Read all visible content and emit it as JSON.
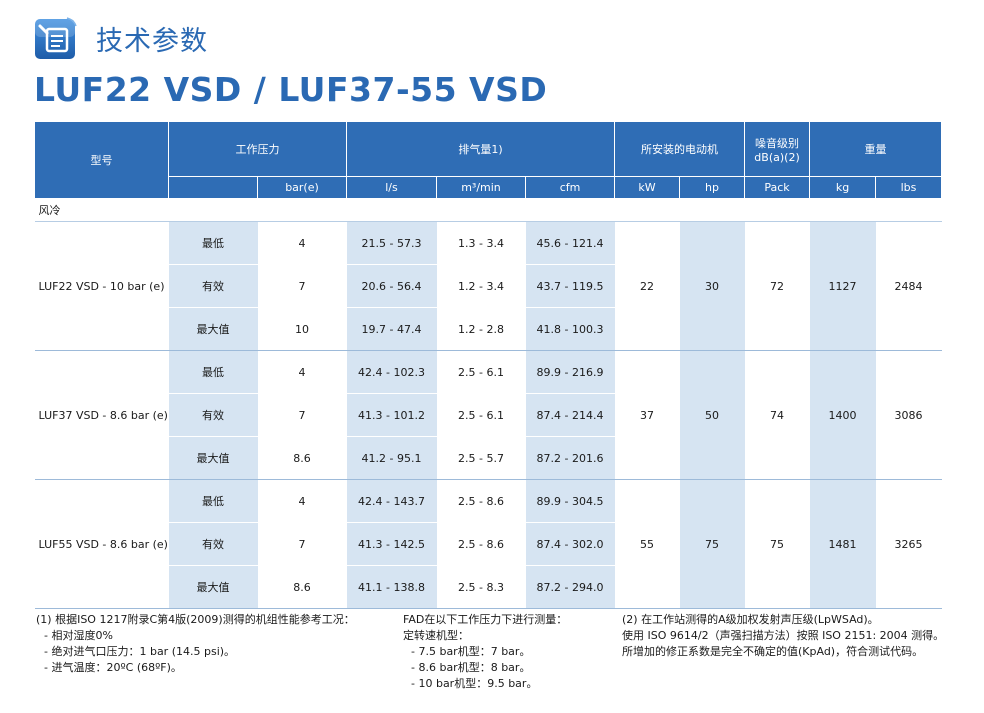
{
  "header": {
    "section_title": "技术参数",
    "model_title": "LUF22 VSD / LUF37-55 VSD",
    "logo_icon": "document-list-icon"
  },
  "table": {
    "headers": {
      "model": "型号",
      "working_pressure": "工作压力",
      "fad": "排气量1)",
      "motor": "所安装的电动机",
      "noise": "噪音级别 dB(a)(2)",
      "weight": "重量"
    },
    "units": {
      "bar": "bar(e)",
      "ls": "l/s",
      "m3": "m³/min",
      "cfm": "cfm",
      "kw": "kW",
      "hp": "hp",
      "pack": "Pack",
      "kg": "kg",
      "lbs": "lbs"
    },
    "category": "风冷",
    "models": [
      {
        "name": "LUF22 VSD - 10 bar (e)",
        "kw": "22",
        "hp": "30",
        "pack": "72",
        "kg": "1127",
        "lbs": "2484",
        "rows": [
          {
            "label": "最低",
            "bar": "4",
            "ls": "21.5 - 57.3",
            "m3": "1.3 - 3.4",
            "cfm": "45.6 - 121.4"
          },
          {
            "label": "有效",
            "bar": "7",
            "ls": "20.6 - 56.4",
            "m3": "1.2 - 3.4",
            "cfm": "43.7 - 119.5"
          },
          {
            "label": "最大值",
            "bar": "10",
            "ls": "19.7 - 47.4",
            "m3": "1.2 - 2.8",
            "cfm": "41.8 - 100.3"
          }
        ]
      },
      {
        "name": "LUF37 VSD - 8.6 bar (e)",
        "kw": "37",
        "hp": "50",
        "pack": "74",
        "kg": "1400",
        "lbs": "3086",
        "rows": [
          {
            "label": "最低",
            "bar": "4",
            "ls": "42.4 - 102.3",
            "m3": "2.5 - 6.1",
            "cfm": "89.9 - 216.9"
          },
          {
            "label": "有效",
            "bar": "7",
            "ls": "41.3 - 101.2",
            "m3": "2.5 - 6.1",
            "cfm": "87.4 - 214.4"
          },
          {
            "label": "最大值",
            "bar": "8.6",
            "ls": "41.2 - 95.1",
            "m3": "2.5 - 5.7",
            "cfm": "87.2 - 201.6"
          }
        ]
      },
      {
        "name": "LUF55 VSD - 8.6 bar (e)",
        "kw": "55",
        "hp": "75",
        "pack": "75",
        "kg": "1481",
        "lbs": "3265",
        "rows": [
          {
            "label": "最低",
            "bar": "4",
            "ls": "42.4 - 143.7",
            "m3": "2.5 - 8.6",
            "cfm": "89.9 - 304.5"
          },
          {
            "label": "有效",
            "bar": "7",
            "ls": "41.3 - 142.5",
            "m3": "2.5 - 8.6",
            "cfm": "87.4 - 302.0"
          },
          {
            "label": "最大值",
            "bar": "8.6",
            "ls": "41.1 - 138.8",
            "m3": "2.5 - 8.3",
            "cfm": "87.2 - 294.0"
          }
        ]
      }
    ]
  },
  "notes": {
    "col1": [
      "(1) 根据ISO 1217附录C第4版(2009)测得的机组性能参考工况：",
      "- 相对湿度0%",
      "- 绝对进气口压力：1 bar (14.5 psi)。",
      "- 进气温度：20ºC (68ºF)。"
    ],
    "col2": [
      "FAD在以下工作压力下进行测量：",
      "定转速机型：",
      "- 7.5 bar机型：7 bar。",
      "- 8.6 bar机型：8 bar。",
      "- 10 bar机型：9.5 bar。"
    ],
    "col3": [
      "(2) 在工作站测得的A级加权发射声压级(LpWSAd)。",
      "使用 ISO 9614/2（声强扫描方法）按照 ISO 2151: 2004 测得。",
      "所增加的修正系数是完全不确定的值(KpAd)，符合测试代码。"
    ]
  }
}
